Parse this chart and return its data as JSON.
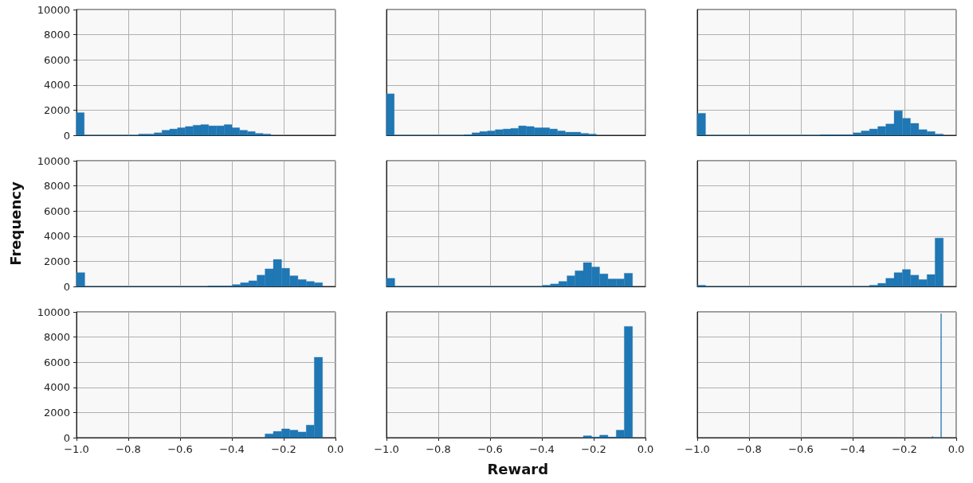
{
  "chart_data": [
    {
      "type": "histogram",
      "color": "#1f77b4",
      "grid": true,
      "tick_labels": "y",
      "xlim": [
        -1,
        0
      ],
      "ylim": [
        0,
        10000
      ],
      "xticks": [
        -1,
        -0.8,
        -0.6,
        -0.4,
        -0.2,
        0
      ],
      "yticks": [
        0,
        2000,
        4000,
        6000,
        8000,
        10000
      ],
      "bins": [
        -1,
        -0.97,
        -0.76,
        -0.73,
        -0.7,
        -0.67,
        -0.64,
        -0.61,
        -0.58,
        -0.55,
        -0.52,
        -0.49,
        -0.46,
        -0.43,
        -0.4,
        -0.37,
        -0.34,
        -0.31,
        -0.28,
        -0.25
      ],
      "values": [
        1800,
        0,
        100,
        100,
        200,
        400,
        500,
        600,
        700,
        800,
        850,
        750,
        750,
        850,
        600,
        400,
        300,
        150,
        100
      ]
    },
    {
      "type": "histogram",
      "color": "#1f77b4",
      "grid": true,
      "tick_labels": false,
      "xlim": [
        -1,
        0
      ],
      "ylim": [
        0,
        10000
      ],
      "xticks": [
        -1,
        -0.8,
        -0.6,
        -0.4,
        -0.2,
        0
      ],
      "yticks": [
        0,
        2000,
        4000,
        6000,
        8000,
        10000
      ],
      "bins": [
        -1,
        -0.97,
        -0.7,
        -0.67,
        -0.64,
        -0.61,
        -0.58,
        -0.55,
        -0.52,
        -0.49,
        -0.46,
        -0.43,
        -0.4,
        -0.37,
        -0.34,
        -0.31,
        -0.28,
        -0.25,
        -0.22,
        -0.19
      ],
      "values": [
        3300,
        0,
        50,
        200,
        300,
        350,
        450,
        500,
        550,
        750,
        700,
        600,
        600,
        500,
        350,
        250,
        250,
        150,
        100
      ]
    },
    {
      "type": "histogram",
      "color": "#1f77b4",
      "grid": true,
      "tick_labels": false,
      "xlim": [
        -1,
        0
      ],
      "ylim": [
        0,
        10000
      ],
      "xticks": [
        -1,
        -0.8,
        -0.6,
        -0.4,
        -0.2,
        0
      ],
      "yticks": [
        0,
        2000,
        4000,
        6000,
        8000,
        10000
      ],
      "bins": [
        -1,
        -0.968,
        -0.525,
        -0.493,
        -0.462,
        -0.43,
        -0.398,
        -0.367,
        -0.335,
        -0.303,
        -0.272,
        -0.24,
        -0.208,
        -0.177,
        -0.145,
        -0.113,
        -0.082,
        -0.05
      ],
      "values": [
        1750,
        0,
        50,
        50,
        50,
        50,
        200,
        350,
        500,
        700,
        900,
        1950,
        1350,
        950,
        450,
        300,
        100
      ]
    },
    {
      "type": "histogram",
      "color": "#1f77b4",
      "grid": true,
      "tick_labels": "y",
      "ylabel": "Frequency",
      "xlim": [
        -1,
        0
      ],
      "ylim": [
        0,
        10000
      ],
      "xticks": [
        -1,
        -0.8,
        -0.6,
        -0.4,
        -0.2,
        0
      ],
      "yticks": [
        0,
        2000,
        4000,
        6000,
        8000,
        10000
      ],
      "bins": [
        -1,
        -0.968,
        -0.493,
        -0.462,
        -0.43,
        -0.398,
        -0.367,
        -0.335,
        -0.303,
        -0.272,
        -0.24,
        -0.208,
        -0.177,
        -0.145,
        -0.113,
        -0.082,
        -0.05
      ],
      "values": [
        1100,
        0,
        50,
        50,
        50,
        150,
        300,
        450,
        900,
        1400,
        2150,
        1450,
        850,
        550,
        400,
        300
      ]
    },
    {
      "type": "histogram",
      "color": "#1f77b4",
      "grid": true,
      "tick_labels": false,
      "xlim": [
        -1,
        0
      ],
      "ylim": [
        0,
        10000
      ],
      "xticks": [
        -1,
        -0.8,
        -0.6,
        -0.4,
        -0.2,
        0
      ],
      "yticks": [
        0,
        2000,
        4000,
        6000,
        8000,
        10000
      ],
      "bins": [
        -1,
        -0.968,
        -0.398,
        -0.367,
        -0.335,
        -0.303,
        -0.272,
        -0.24,
        -0.208,
        -0.177,
        -0.145,
        -0.113,
        -0.082,
        -0.05
      ],
      "values": [
        650,
        0,
        100,
        200,
        400,
        850,
        1250,
        1900,
        1550,
        1000,
        600,
        600,
        1050
      ]
    },
    {
      "type": "histogram",
      "color": "#1f77b4",
      "grid": true,
      "tick_labels": false,
      "xlim": [
        -1,
        0
      ],
      "ylim": [
        0,
        10000
      ],
      "xticks": [
        -1,
        -0.8,
        -0.6,
        -0.4,
        -0.2,
        0
      ],
      "yticks": [
        0,
        2000,
        4000,
        6000,
        8000,
        10000
      ],
      "bins": [
        -1,
        -0.968,
        -0.335,
        -0.303,
        -0.272,
        -0.24,
        -0.208,
        -0.177,
        -0.145,
        -0.113,
        -0.082,
        -0.05
      ],
      "values": [
        100,
        0,
        100,
        250,
        650,
        1100,
        1350,
        900,
        550,
        950,
        3850
      ]
    },
    {
      "type": "histogram",
      "color": "#1f77b4",
      "grid": true,
      "xlim": [
        -1,
        0
      ],
      "ylim": [
        0,
        10000
      ],
      "xticks": [
        {
          "value": -1,
          "label": "−1.0"
        },
        {
          "value": -0.8,
          "label": "−0.8"
        },
        {
          "value": -0.6,
          "label": "−0.6"
        },
        {
          "value": -0.4,
          "label": "−0.4"
        },
        {
          "value": -0.2,
          "label": "−0.2"
        },
        {
          "value": 0,
          "label": "0.0"
        }
      ],
      "yticks": [
        0,
        2000,
        4000,
        6000,
        8000,
        10000
      ],
      "bins": [
        -0.272,
        -0.24,
        -0.208,
        -0.177,
        -0.145,
        -0.113,
        -0.082,
        -0.05
      ],
      "values": [
        300,
        500,
        700,
        600,
        450,
        1000,
        6400
      ]
    },
    {
      "type": "histogram",
      "color": "#1f77b4",
      "grid": true,
      "tick_labels": "x",
      "xlabel": "Reward",
      "xlim": [
        -1,
        0
      ],
      "ylim": [
        0,
        10000
      ],
      "xticks": [
        {
          "value": -1,
          "label": "−1.0"
        },
        {
          "value": -0.8,
          "label": "−0.8"
        },
        {
          "value": -0.6,
          "label": "−0.6"
        },
        {
          "value": -0.4,
          "label": "−0.4"
        },
        {
          "value": -0.2,
          "label": "−0.2"
        },
        {
          "value": 0,
          "label": "0.0"
        }
      ],
      "yticks": [
        0,
        2000,
        4000,
        6000,
        8000,
        10000
      ],
      "bins": [
        -0.24,
        -0.208,
        -0.177,
        -0.145,
        -0.113,
        -0.082,
        -0.05
      ],
      "values": [
        150,
        50,
        200,
        50,
        600,
        8850
      ]
    },
    {
      "type": "histogram",
      "color": "#1f77b4",
      "grid": true,
      "tick_labels": "x",
      "xlim": [
        -1,
        0
      ],
      "ylim": [
        0,
        10000
      ],
      "xticks": [
        {
          "value": -1,
          "label": "−1.0"
        },
        {
          "value": -0.8,
          "label": "−0.8"
        },
        {
          "value": -0.6,
          "label": "−0.6"
        },
        {
          "value": -0.4,
          "label": "−0.4"
        },
        {
          "value": -0.2,
          "label": "−0.2"
        },
        {
          "value": 0,
          "label": "0.0"
        }
      ],
      "yticks": [
        0,
        2000,
        4000,
        6000,
        8000,
        10000
      ],
      "bins": [
        -0.093,
        -0.09,
        -0.06,
        -0.057
      ],
      "values": [
        100,
        0,
        9850
      ]
    }
  ]
}
